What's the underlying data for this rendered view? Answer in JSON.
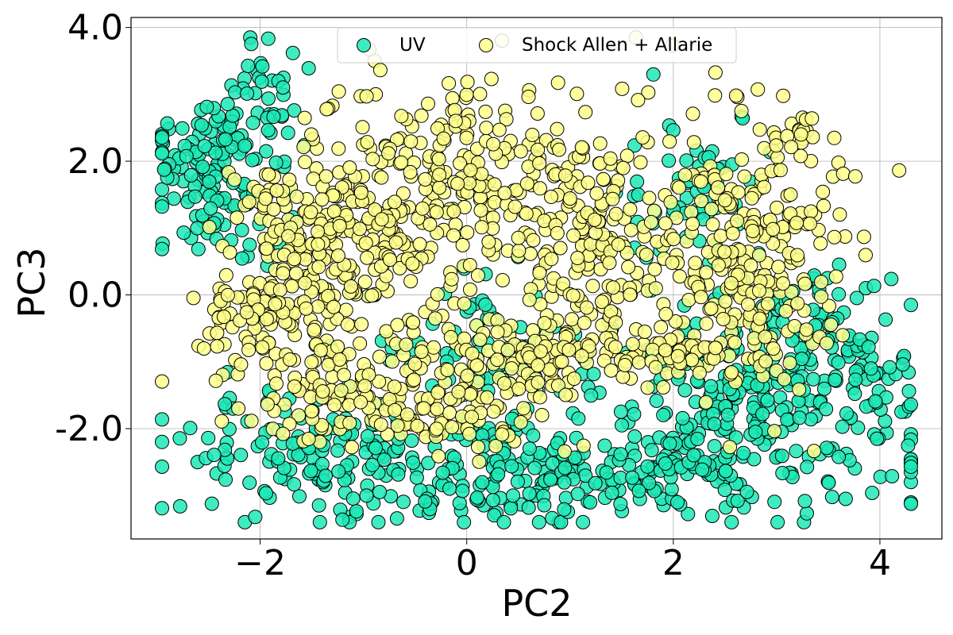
{
  "chart_data": {
    "type": "scatter",
    "title": "",
    "xlabel": "PC2",
    "ylabel": "PC3",
    "xlim": [
      -3.25,
      4.6
    ],
    "ylim": [
      -3.65,
      4.15
    ],
    "xticks": [
      -2,
      0,
      2,
      4
    ],
    "xtick_labels": [
      "−2",
      "0",
      "2",
      "4"
    ],
    "yticks": [
      4.0,
      2.0,
      0.0,
      -2.0
    ],
    "ytick_labels": [
      "4.0",
      "2.0",
      "0.0",
      "-2.0"
    ],
    "grid": true,
    "legend_placement": "upper center",
    "series": [
      {
        "name": "UV",
        "color": "#1de9b6",
        "edge_color": "#000000",
        "clusters": [
          {
            "cx": -2.5,
            "cy": 1.6,
            "sx": 0.35,
            "sy": 0.55,
            "n": 110
          },
          {
            "cx": -1.9,
            "cy": 3.2,
            "sx": 0.2,
            "sy": 0.35,
            "n": 25
          },
          {
            "cx": -2.2,
            "cy": 2.4,
            "sx": 0.3,
            "sy": 0.35,
            "n": 40
          },
          {
            "cx": 0.8,
            "cy": -2.6,
            "sx": 1.6,
            "sy": 0.45,
            "n": 360
          },
          {
            "cx": -1.5,
            "cy": -2.3,
            "sx": 0.55,
            "sy": 0.4,
            "n": 90
          },
          {
            "cx": 2.8,
            "cy": -1.6,
            "sx": 0.7,
            "sy": 0.55,
            "n": 180
          },
          {
            "cx": 3.3,
            "cy": -0.4,
            "sx": 0.45,
            "sy": 0.5,
            "n": 70
          },
          {
            "cx": 3.9,
            "cy": -1.1,
            "sx": 0.25,
            "sy": 0.3,
            "n": 25
          },
          {
            "cx": 2.2,
            "cy": 1.6,
            "sx": 0.35,
            "sy": 0.6,
            "n": 60
          },
          {
            "cx": 0.3,
            "cy": -0.8,
            "sx": 0.6,
            "sy": 0.5,
            "n": 70
          },
          {
            "cx": 4.1,
            "cy": 0.0,
            "sx": 0.15,
            "sy": 0.15,
            "n": 3
          }
        ]
      },
      {
        "name": "Shock Allen + Allarie",
        "color": "#ffff8d",
        "edge_color": "#000000",
        "clusters": [
          {
            "cx": -0.8,
            "cy": 1.0,
            "sx": 0.5,
            "sy": 0.95,
            "n": 260
          },
          {
            "cx": -1.6,
            "cy": 0.4,
            "sx": 0.3,
            "sy": 0.8,
            "n": 110
          },
          {
            "cx": -2.1,
            "cy": -0.3,
            "sx": 0.3,
            "sy": 0.25,
            "n": 60
          },
          {
            "cx": -1.2,
            "cy": -1.4,
            "sx": 0.6,
            "sy": 0.4,
            "n": 110
          },
          {
            "cx": 0.2,
            "cy": 2.0,
            "sx": 0.35,
            "sy": 0.7,
            "n": 80
          },
          {
            "cx": 1.1,
            "cy": 0.6,
            "sx": 0.45,
            "sy": 1.0,
            "n": 230
          },
          {
            "cx": 0.5,
            "cy": -0.9,
            "sx": 0.4,
            "sy": 0.3,
            "n": 80
          },
          {
            "cx": 2.7,
            "cy": 0.6,
            "sx": 0.45,
            "sy": 1.05,
            "n": 260
          },
          {
            "cx": 2.1,
            "cy": -0.9,
            "sx": 0.5,
            "sy": 0.2,
            "n": 70
          },
          {
            "cx": -0.3,
            "cy": -1.8,
            "sx": 0.5,
            "sy": 0.3,
            "n": 70
          },
          {
            "cx": 3.2,
            "cy": 2.4,
            "sx": 0.12,
            "sy": 0.2,
            "n": 15
          },
          {
            "cx": -2.0,
            "cy": 1.4,
            "sx": 0.15,
            "sy": 0.15,
            "n": 12
          }
        ]
      }
    ]
  }
}
